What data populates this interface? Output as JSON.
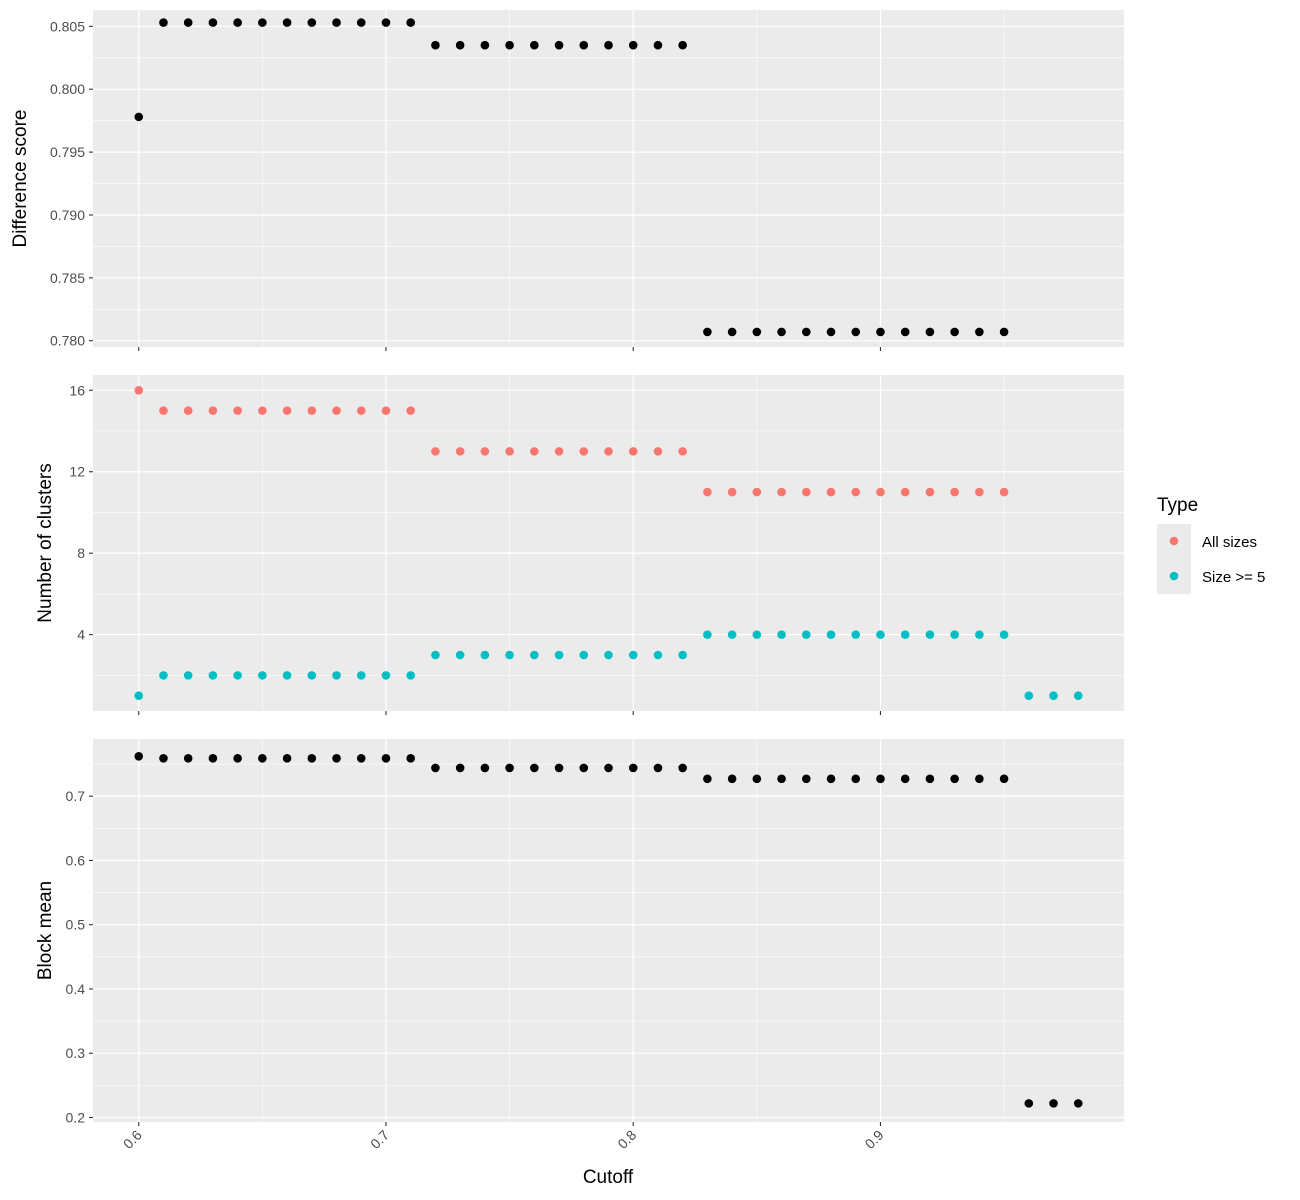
{
  "chart_data": {
    "type": "scatter",
    "shared_x": {
      "label": "Cutoff",
      "ticks": [
        "0.6",
        "0.7",
        "0.8",
        "0.9"
      ],
      "tick_values": [
        0.6,
        0.7,
        0.8,
        0.9
      ],
      "xlim": [
        0.5815,
        0.9985
      ]
    },
    "colors": {
      "panel_bg": "#ebebeb",
      "grid": "#ffffff",
      "tick_text": "#4d4d4d",
      "points_default": "#000000"
    },
    "legend": {
      "title": "Type",
      "placement": "right",
      "entries": [
        {
          "label": "All sizes",
          "color": "#f8766d"
        },
        {
          "label": "Size >= 5",
          "color": "#00bfc4"
        }
      ]
    },
    "panels": [
      {
        "ylabel": "Difference score",
        "ylim": [
          0.7795,
          0.8063
        ],
        "yticks": [
          "0.780",
          "0.785",
          "0.790",
          "0.795",
          "0.800",
          "0.805"
        ],
        "ytick_values": [
          0.78,
          0.785,
          0.79,
          0.795,
          0.8,
          0.805
        ],
        "series": [
          {
            "color": "#000000",
            "x": [
              0.6,
              0.61,
              0.62,
              0.63,
              0.64,
              0.65,
              0.66,
              0.67,
              0.68,
              0.69,
              0.7,
              0.71,
              0.72,
              0.73,
              0.74,
              0.75,
              0.76,
              0.77,
              0.78,
              0.79,
              0.8,
              0.81,
              0.82,
              0.83,
              0.84,
              0.85,
              0.86,
              0.87,
              0.88,
              0.89,
              0.9,
              0.91,
              0.92,
              0.93,
              0.94,
              0.95
            ],
            "y": [
              0.7978,
              0.8053,
              0.8053,
              0.8053,
              0.8053,
              0.8053,
              0.8053,
              0.8053,
              0.8053,
              0.8053,
              0.8053,
              0.8053,
              0.8035,
              0.8035,
              0.8035,
              0.8035,
              0.8035,
              0.8035,
              0.8035,
              0.8035,
              0.8035,
              0.8035,
              0.8035,
              0.7807,
              0.7807,
              0.7807,
              0.7807,
              0.7807,
              0.7807,
              0.7807,
              0.7807,
              0.7807,
              0.7807,
              0.7807,
              0.7807,
              0.7807
            ]
          }
        ]
      },
      {
        "ylabel": "Number of clusters",
        "ylim": [
          0.25,
          16.75
        ],
        "yticks": [
          "4",
          "8",
          "12",
          "16"
        ],
        "ytick_values": [
          4,
          8,
          12,
          16
        ],
        "series": [
          {
            "name": "All sizes",
            "color": "#f8766d",
            "x": [
              0.6,
              0.61,
              0.62,
              0.63,
              0.64,
              0.65,
              0.66,
              0.67,
              0.68,
              0.69,
              0.7,
              0.71,
              0.72,
              0.73,
              0.74,
              0.75,
              0.76,
              0.77,
              0.78,
              0.79,
              0.8,
              0.81,
              0.82,
              0.83,
              0.84,
              0.85,
              0.86,
              0.87,
              0.88,
              0.89,
              0.9,
              0.91,
              0.92,
              0.93,
              0.94,
              0.95
            ],
            "y": [
              16,
              15,
              15,
              15,
              15,
              15,
              15,
              15,
              15,
              15,
              15,
              15,
              13,
              13,
              13,
              13,
              13,
              13,
              13,
              13,
              13,
              13,
              13,
              11,
              11,
              11,
              11,
              11,
              11,
              11,
              11,
              11,
              11,
              11,
              11,
              11
            ]
          },
          {
            "name": "Size >= 5",
            "color": "#00bfc4",
            "x": [
              0.6,
              0.61,
              0.62,
              0.63,
              0.64,
              0.65,
              0.66,
              0.67,
              0.68,
              0.69,
              0.7,
              0.71,
              0.72,
              0.73,
              0.74,
              0.75,
              0.76,
              0.77,
              0.78,
              0.79,
              0.8,
              0.81,
              0.82,
              0.83,
              0.84,
              0.85,
              0.86,
              0.87,
              0.88,
              0.89,
              0.9,
              0.91,
              0.92,
              0.93,
              0.94,
              0.95,
              0.96,
              0.97,
              0.98
            ],
            "y": [
              1,
              2,
              2,
              2,
              2,
              2,
              2,
              2,
              2,
              2,
              2,
              2,
              3,
              3,
              3,
              3,
              3,
              3,
              3,
              3,
              3,
              3,
              3,
              4,
              4,
              4,
              4,
              4,
              4,
              4,
              4,
              4,
              4,
              4,
              4,
              4,
              1,
              1,
              1
            ]
          }
        ]
      },
      {
        "ylabel": "Block mean",
        "ylim": [
          0.193,
          0.789
        ],
        "yticks": [
          "0.2",
          "0.3",
          "0.4",
          "0.5",
          "0.6",
          "0.7"
        ],
        "ytick_values": [
          0.2,
          0.3,
          0.4,
          0.5,
          0.6,
          0.7
        ],
        "series": [
          {
            "color": "#000000",
            "x": [
              0.6,
              0.61,
              0.62,
              0.63,
              0.64,
              0.65,
              0.66,
              0.67,
              0.68,
              0.69,
              0.7,
              0.71,
              0.72,
              0.73,
              0.74,
              0.75,
              0.76,
              0.77,
              0.78,
              0.79,
              0.8,
              0.81,
              0.82,
              0.83,
              0.84,
              0.85,
              0.86,
              0.87,
              0.88,
              0.89,
              0.9,
              0.91,
              0.92,
              0.93,
              0.94,
              0.95,
              0.96,
              0.97,
              0.98
            ],
            "y": [
              0.762,
              0.759,
              0.759,
              0.759,
              0.759,
              0.759,
              0.759,
              0.759,
              0.759,
              0.759,
              0.759,
              0.759,
              0.744,
              0.744,
              0.744,
              0.744,
              0.744,
              0.744,
              0.744,
              0.744,
              0.744,
              0.744,
              0.744,
              0.727,
              0.727,
              0.727,
              0.727,
              0.727,
              0.727,
              0.727,
              0.727,
              0.727,
              0.727,
              0.727,
              0.727,
              0.727,
              0.222,
              0.222,
              0.222
            ]
          }
        ]
      }
    ]
  }
}
